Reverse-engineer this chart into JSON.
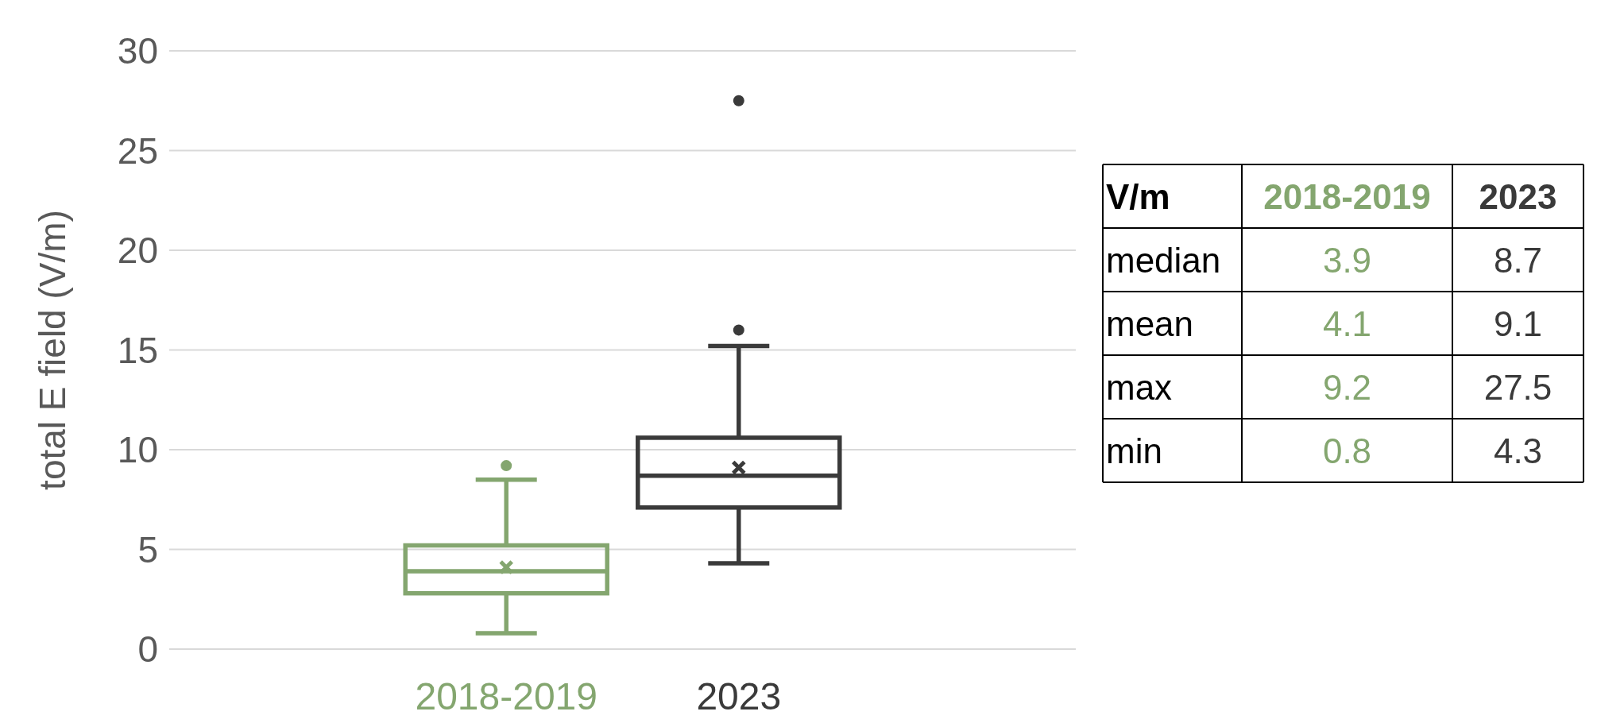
{
  "chart_data": {
    "type": "box",
    "ylabel": "total E field (V/m)",
    "categories": [
      "2018-2019",
      "2023"
    ],
    "colors": [
      "#84a66f",
      "#3a3a3a"
    ],
    "boxes": [
      {
        "low": 0.8,
        "q1": 2.8,
        "median": 3.9,
        "q3": 5.2,
        "high": 8.5,
        "mean": 4.1,
        "outliers": [
          9.2
        ]
      },
      {
        "low": 4.3,
        "q1": 7.1,
        "median": 8.7,
        "q3": 10.6,
        "high": 15.2,
        "mean": 9.1,
        "outliers": [
          16.0,
          27.5
        ]
      }
    ],
    "ylim": [
      0,
      30
    ],
    "yticks": [
      0,
      5,
      10,
      15,
      20,
      25,
      30
    ],
    "grid": "y",
    "annotations": [
      "V/m",
      "median",
      "3.9",
      "8.7",
      "mean",
      "4.1",
      "9.1",
      "max",
      "9.2",
      "27.5",
      "min",
      "0.8",
      "4.3"
    ]
  }
}
